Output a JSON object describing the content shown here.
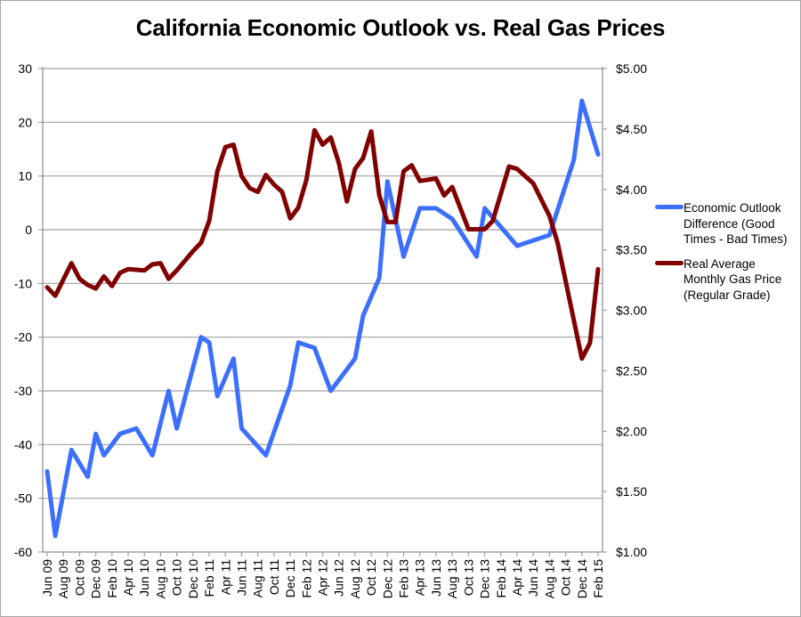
{
  "chart_data": {
    "type": "line",
    "title": "California Economic Outlook vs. Real Gas Prices",
    "xlabel": "",
    "ylabel_left": "",
    "ylabel_right": "",
    "grid": true,
    "legend_position": "right",
    "x_tick_labels": [
      "Jun 09",
      "Aug 09",
      "Oct 09",
      "Dec 09",
      "Feb 10",
      "Apr 10",
      "Jun 10",
      "Aug 10",
      "Oct 10",
      "Dec 10",
      "Feb 11",
      "Apr 11",
      "Jun 11",
      "Aug 11",
      "Oct 11",
      "Dec 11",
      "Feb 12",
      "Apr 12",
      "Jun 12",
      "Aug 12",
      "Oct 12",
      "Dec 12",
      "Feb 13",
      "Apr 13",
      "Jun 13",
      "Aug 13",
      "Oct 13",
      "Dec 13",
      "Feb 14",
      "Apr 14",
      "Jun 14",
      "Aug 14",
      "Oct 14",
      "Dec 14",
      "Feb 15"
    ],
    "x_range_months": [
      0,
      68
    ],
    "left_axis": {
      "ylim": [
        -60,
        30
      ],
      "ticks": [
        30,
        20,
        10,
        0,
        -10,
        -20,
        -30,
        -40,
        -50,
        -60
      ],
      "tick_labels": [
        "30",
        "20",
        "10",
        "0",
        "-10",
        "-20",
        "-30",
        "-40",
        "-50",
        "-60"
      ]
    },
    "right_axis": {
      "ylim": [
        1.0,
        5.0
      ],
      "ticks": [
        5.0,
        4.5,
        4.0,
        3.5,
        3.0,
        2.5,
        2.0,
        1.5,
        1.0
      ],
      "tick_labels": [
        "$5.00",
        "$4.50",
        "$4.00",
        "$3.50",
        "$3.00",
        "$2.50",
        "$2.00",
        "$1.50",
        "$1.00"
      ]
    },
    "series": [
      {
        "name": "Economic Outlook Difference (Good Times - Bad Times)",
        "axis": "left",
        "color": "#3d6fff",
        "points": [
          [
            0,
            -45
          ],
          [
            1,
            -57
          ],
          [
            3,
            -41
          ],
          [
            5,
            -46
          ],
          [
            6,
            -38
          ],
          [
            7,
            -42
          ],
          [
            9,
            -38
          ],
          [
            11,
            -37
          ],
          [
            13,
            -42
          ],
          [
            15,
            -30
          ],
          [
            16,
            -37
          ],
          [
            19,
            -20
          ],
          [
            20,
            -21
          ],
          [
            21,
            -31
          ],
          [
            23,
            -24
          ],
          [
            24,
            -37
          ],
          [
            27,
            -42
          ],
          [
            30,
            -29
          ],
          [
            31,
            -21
          ],
          [
            33,
            -22
          ],
          [
            35,
            -30
          ],
          [
            38,
            -24
          ],
          [
            39,
            -16
          ],
          [
            41,
            -9
          ],
          [
            42,
            9
          ],
          [
            44,
            -5
          ],
          [
            46,
            4
          ],
          [
            48,
            4
          ],
          [
            50,
            2
          ],
          [
            53,
            -5
          ],
          [
            54,
            4
          ],
          [
            58,
            -3
          ],
          [
            62,
            -1
          ],
          [
            65,
            13
          ],
          [
            66,
            24
          ],
          [
            68,
            14
          ]
        ]
      },
      {
        "name": "Real Average Monthly Gas Price (Regular Grade)",
        "axis": "right",
        "color": "#800000",
        "points": [
          [
            0,
            3.19
          ],
          [
            1,
            3.12
          ],
          [
            3,
            3.39
          ],
          [
            4,
            3.26
          ],
          [
            5,
            3.21
          ],
          [
            6,
            3.18
          ],
          [
            7,
            3.28
          ],
          [
            8,
            3.2
          ],
          [
            9,
            3.31
          ],
          [
            10,
            3.34
          ],
          [
            12,
            3.33
          ],
          [
            13,
            3.38
          ],
          [
            14,
            3.39
          ],
          [
            15,
            3.26
          ],
          [
            16,
            3.33
          ],
          [
            17,
            3.41
          ],
          [
            18,
            3.49
          ],
          [
            19,
            3.56
          ],
          [
            20,
            3.74
          ],
          [
            21,
            4.15
          ],
          [
            22,
            4.35
          ],
          [
            23,
            4.37
          ],
          [
            24,
            4.11
          ],
          [
            25,
            4.01
          ],
          [
            26,
            3.98
          ],
          [
            27,
            4.12
          ],
          [
            28,
            4.04
          ],
          [
            29,
            3.98
          ],
          [
            30,
            3.76
          ],
          [
            31,
            3.85
          ],
          [
            32,
            4.08
          ],
          [
            33,
            4.49
          ],
          [
            34,
            4.37
          ],
          [
            35,
            4.43
          ],
          [
            36,
            4.22
          ],
          [
            37,
            3.9
          ],
          [
            38,
            4.17
          ],
          [
            39,
            4.26
          ],
          [
            40,
            4.48
          ],
          [
            41,
            3.95
          ],
          [
            42,
            3.73
          ],
          [
            43,
            3.73
          ],
          [
            44,
            4.15
          ],
          [
            45,
            4.2
          ],
          [
            46,
            4.07
          ],
          [
            47,
            4.08
          ],
          [
            48,
            4.09
          ],
          [
            49,
            3.95
          ],
          [
            50,
            4.02
          ],
          [
            52,
            3.67
          ],
          [
            54,
            3.67
          ],
          [
            55,
            3.74
          ],
          [
            57,
            4.19
          ],
          [
            58,
            4.17
          ],
          [
            60,
            4.05
          ],
          [
            62,
            3.78
          ],
          [
            63,
            3.56
          ],
          [
            66,
            2.6
          ],
          [
            67,
            2.73
          ],
          [
            68,
            3.34
          ]
        ]
      }
    ]
  },
  "legend": {
    "items": [
      {
        "label": "Economic Outlook Difference (Good Times - Bad Times)",
        "color": "#3d6fff"
      },
      {
        "label": "Real Average Monthly Gas Price (Regular Grade)",
        "color": "#800000"
      }
    ]
  }
}
